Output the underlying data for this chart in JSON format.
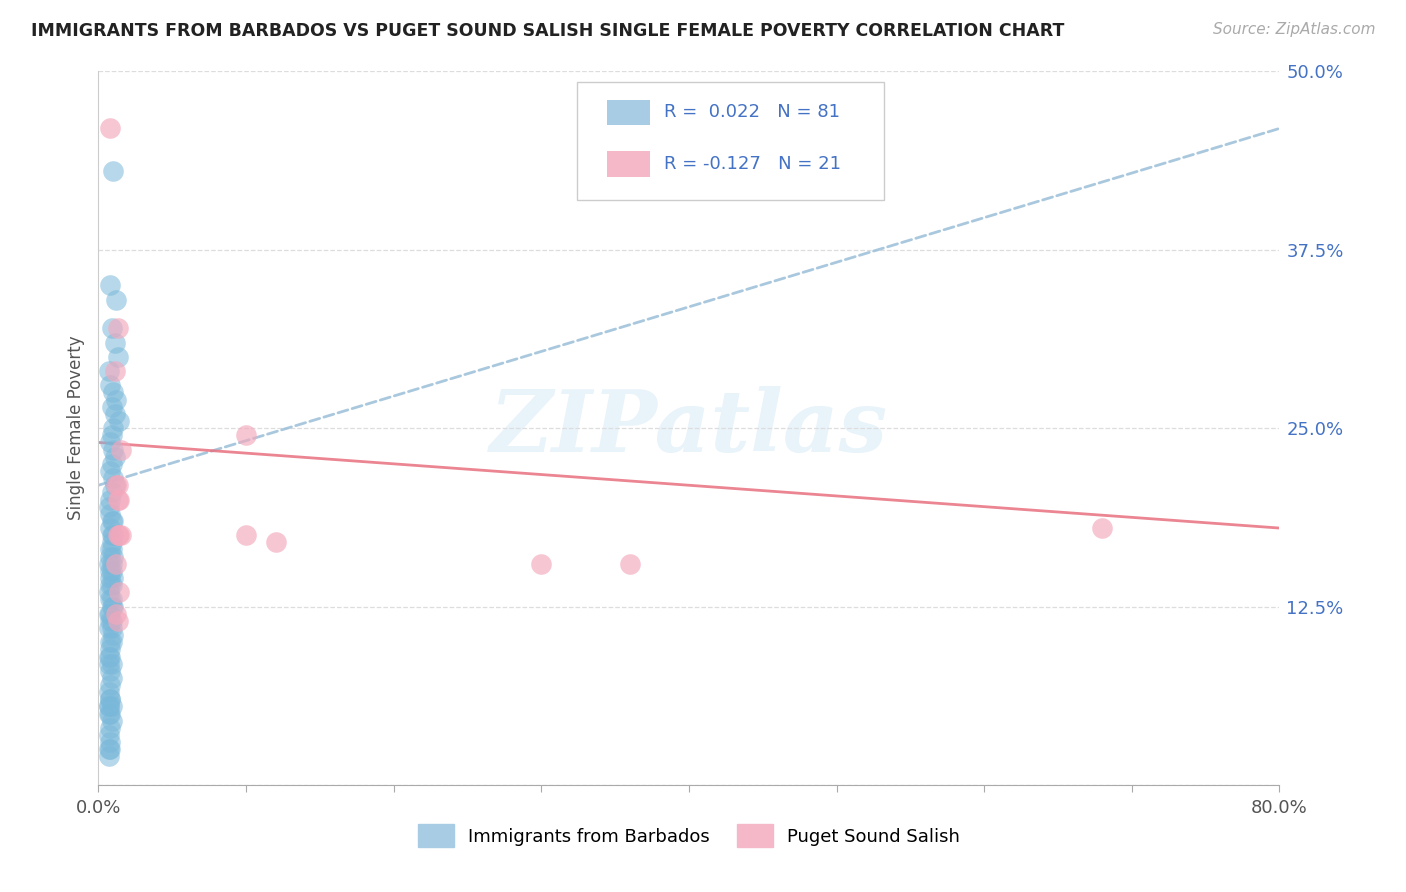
{
  "title": "IMMIGRANTS FROM BARBADOS VS PUGET SOUND SALISH SINGLE FEMALE POVERTY CORRELATION CHART",
  "source": "Source: ZipAtlas.com",
  "ylabel": "Single Female Poverty",
  "xlim": [
    0.0,
    0.8
  ],
  "ylim": [
    0.0,
    0.5
  ],
  "ytick_vals": [
    0.0,
    0.125,
    0.25,
    0.375,
    0.5
  ],
  "ytick_labels": [
    "",
    "12.5%",
    "25.0%",
    "37.5%",
    "50.0%"
  ],
  "blue_R": 0.022,
  "blue_N": 81,
  "pink_R": -0.127,
  "pink_N": 21,
  "blue_scatter_color": "#7ab8d9",
  "pink_scatter_color": "#f4a8bc",
  "blue_line_color": "#9bbfd8",
  "pink_line_color": "#e8707e",
  "legend_blue_label": "Immigrants from Barbados",
  "legend_pink_label": "Puget Sound Salish",
  "blue_x": [
    0.01,
    0.008,
    0.012,
    0.009,
    0.011,
    0.013,
    0.007,
    0.008,
    0.01,
    0.012,
    0.009,
    0.011,
    0.014,
    0.01,
    0.009,
    0.008,
    0.01,
    0.011,
    0.009,
    0.008,
    0.01,
    0.011,
    0.009,
    0.008,
    0.007,
    0.008,
    0.009,
    0.01,
    0.008,
    0.009,
    0.01,
    0.009,
    0.008,
    0.009,
    0.01,
    0.008,
    0.007,
    0.009,
    0.008,
    0.009,
    0.01,
    0.008,
    0.009,
    0.008,
    0.007,
    0.009,
    0.008,
    0.01,
    0.009,
    0.008,
    0.007,
    0.009,
    0.008,
    0.007,
    0.009,
    0.01,
    0.008,
    0.009,
    0.008,
    0.007,
    0.008,
    0.009,
    0.007,
    0.008,
    0.009,
    0.008,
    0.007,
    0.008,
    0.009,
    0.007,
    0.008,
    0.007,
    0.009,
    0.008,
    0.007,
    0.008,
    0.007,
    0.008,
    0.007,
    0.008,
    0.007
  ],
  "blue_y": [
    0.43,
    0.35,
    0.34,
    0.32,
    0.31,
    0.3,
    0.29,
    0.28,
    0.275,
    0.27,
    0.265,
    0.26,
    0.255,
    0.25,
    0.245,
    0.24,
    0.235,
    0.23,
    0.225,
    0.22,
    0.215,
    0.21,
    0.205,
    0.2,
    0.195,
    0.19,
    0.185,
    0.185,
    0.18,
    0.175,
    0.175,
    0.17,
    0.165,
    0.165,
    0.16,
    0.16,
    0.155,
    0.155,
    0.15,
    0.15,
    0.145,
    0.145,
    0.14,
    0.14,
    0.135,
    0.13,
    0.13,
    0.125,
    0.125,
    0.12,
    0.12,
    0.115,
    0.115,
    0.11,
    0.11,
    0.105,
    0.1,
    0.1,
    0.095,
    0.09,
    0.09,
    0.085,
    0.085,
    0.08,
    0.075,
    0.07,
    0.065,
    0.06,
    0.055,
    0.055,
    0.05,
    0.05,
    0.045,
    0.04,
    0.035,
    0.03,
    0.025,
    0.025,
    0.02,
    0.06,
    0.055
  ],
  "pink_x": [
    0.008,
    0.013,
    0.011,
    0.015,
    0.012,
    0.013,
    0.014,
    0.1,
    0.1,
    0.015,
    0.013,
    0.012,
    0.014,
    0.013,
    0.012,
    0.013,
    0.014,
    0.12,
    0.3,
    0.36,
    0.68
  ],
  "pink_y": [
    0.46,
    0.32,
    0.29,
    0.235,
    0.21,
    0.21,
    0.2,
    0.245,
    0.175,
    0.175,
    0.175,
    0.155,
    0.135,
    0.115,
    0.12,
    0.2,
    0.175,
    0.17,
    0.155,
    0.155,
    0.18
  ],
  "blue_trend_x": [
    0.0,
    0.8
  ],
  "blue_trend_y": [
    0.21,
    0.46
  ],
  "pink_trend_x": [
    0.0,
    0.8
  ],
  "pink_trend_y": [
    0.24,
    0.18
  ],
  "xtick_positions": [
    0.0,
    0.1,
    0.2,
    0.3,
    0.4,
    0.5,
    0.6,
    0.7,
    0.8
  ],
  "watermark_text": "ZIPatlas"
}
